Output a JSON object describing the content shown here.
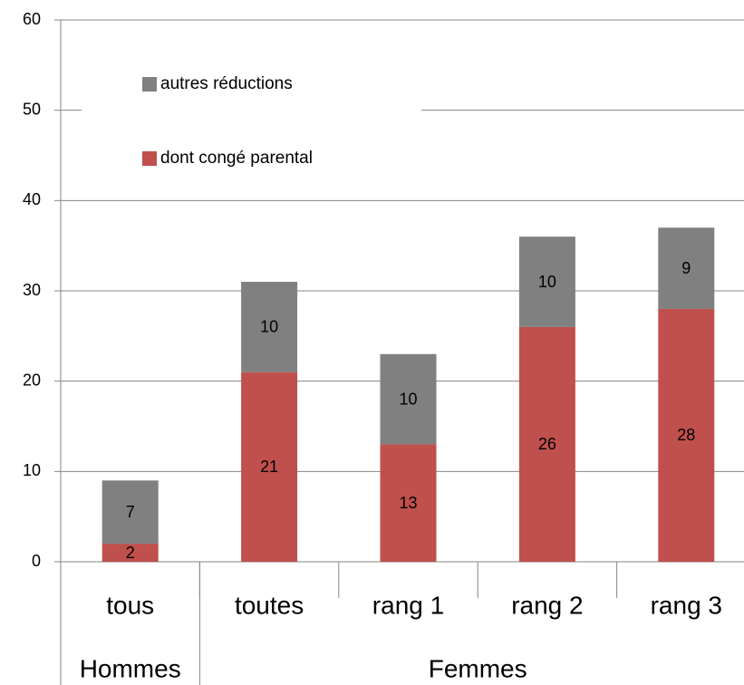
{
  "chart_data": {
    "type": "stacked_bar",
    "categories": [
      "tous",
      "toutes",
      "rang 1",
      "rang 2",
      "rang 3"
    ],
    "groups": [
      {
        "label": "Hommes",
        "count": 1
      },
      {
        "label": "Femmes",
        "count": 4
      }
    ],
    "series": [
      {
        "name": "dont congé parental",
        "color": "#c0504d",
        "values": [
          2,
          21,
          13,
          26,
          28
        ]
      },
      {
        "name": "autres réductions",
        "color": "#808080",
        "values": [
          7,
          10,
          10,
          10,
          9
        ]
      }
    ],
    "ylim": [
      0,
      60
    ],
    "yticks": [
      0,
      10,
      20,
      30,
      40,
      50,
      60
    ],
    "grid": true,
    "legend": "upper left"
  }
}
